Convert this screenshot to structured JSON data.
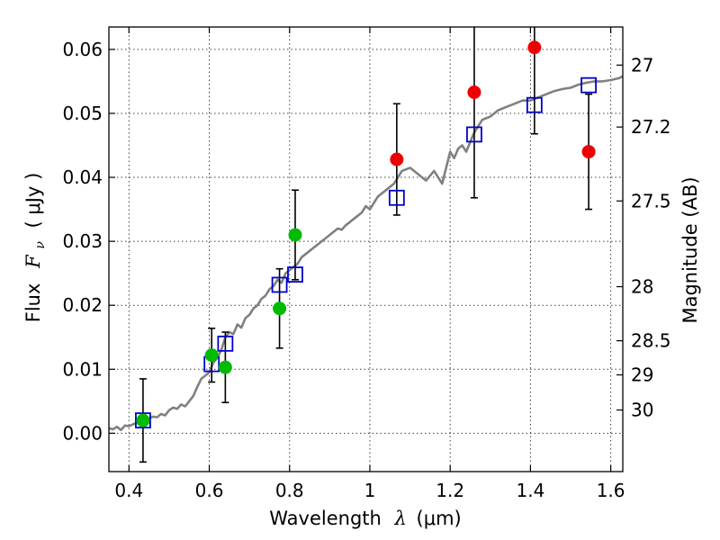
{
  "chart_data": {
    "type": "scatter",
    "title": "",
    "xlabel_prefix": "Wavelength",
    "xlabel_symbol": "λ",
    "xlabel_unit": "(μm)",
    "ylabel_prefix": "Flux",
    "ylabel_symbol": "F",
    "ylabel_subscript": "ν",
    "ylabel_unit": "( μJy )",
    "y2label": "Magnitude (AB)",
    "xlim": [
      0.35,
      1.63
    ],
    "ylim": [
      -0.006,
      0.0635
    ],
    "grid": true,
    "x_ticks": [
      {
        "value": 0.4,
        "label": "0.4"
      },
      {
        "value": 0.6,
        "label": "0.6"
      },
      {
        "value": 0.8,
        "label": "0.8"
      },
      {
        "value": 1.0,
        "label": "1"
      },
      {
        "value": 1.2,
        "label": "1.2"
      },
      {
        "value": 1.4,
        "label": "1.4"
      },
      {
        "value": 1.6,
        "label": "1.6"
      }
    ],
    "y_ticks": [
      {
        "value": 0.0,
        "label": "0.00"
      },
      {
        "value": 0.01,
        "label": "0.01"
      },
      {
        "value": 0.02,
        "label": "0.02"
      },
      {
        "value": 0.03,
        "label": "0.03"
      },
      {
        "value": 0.04,
        "label": "0.04"
      },
      {
        "value": 0.05,
        "label": "0.05"
      },
      {
        "value": 0.06,
        "label": "0.06"
      }
    ],
    "y2_ticks": [
      {
        "magnitude": 27,
        "label": "27"
      },
      {
        "magnitude": 27.2,
        "label": "27.2"
      },
      {
        "magnitude": 27.5,
        "label": "27.5"
      },
      {
        "magnitude": 28,
        "label": "28"
      },
      {
        "magnitude": 28.5,
        "label": "28.5"
      },
      {
        "magnitude": 29,
        "label": "29"
      },
      {
        "magnitude": 30,
        "label": "30"
      }
    ],
    "colors": {
      "model": "#808080",
      "model_photometry": "#0000cc",
      "optical": "#00bb00",
      "infrared": "#ee0000",
      "errorbar": "#000000"
    },
    "model_spectrum": {
      "x": [
        0.35,
        0.36,
        0.37,
        0.38,
        0.39,
        0.4,
        0.41,
        0.42,
        0.43,
        0.44,
        0.45,
        0.46,
        0.47,
        0.48,
        0.49,
        0.5,
        0.51,
        0.52,
        0.53,
        0.54,
        0.55,
        0.56,
        0.57,
        0.58,
        0.59,
        0.6,
        0.61,
        0.62,
        0.63,
        0.64,
        0.65,
        0.66,
        0.67,
        0.68,
        0.69,
        0.7,
        0.71,
        0.72,
        0.73,
        0.74,
        0.75,
        0.76,
        0.77,
        0.78,
        0.79,
        0.8,
        0.81,
        0.82,
        0.83,
        0.84,
        0.85,
        0.86,
        0.87,
        0.88,
        0.89,
        0.9,
        0.91,
        0.92,
        0.93,
        0.94,
        0.95,
        0.96,
        0.97,
        0.98,
        0.99,
        1.0,
        1.02,
        1.04,
        1.06,
        1.08,
        1.1,
        1.12,
        1.14,
        1.16,
        1.18,
        1.2,
        1.21,
        1.22,
        1.23,
        1.24,
        1.26,
        1.28,
        1.3,
        1.32,
        1.34,
        1.36,
        1.38,
        1.4,
        1.42,
        1.44,
        1.46,
        1.48,
        1.5,
        1.52,
        1.54,
        1.56,
        1.58,
        1.6,
        1.62,
        1.63
      ],
      "y": [
        0.0008,
        0.0006,
        0.001,
        0.0005,
        0.0012,
        0.0011,
        0.0014,
        0.0016,
        0.0018,
        0.002,
        0.0023,
        0.0026,
        0.0025,
        0.003,
        0.0028,
        0.0036,
        0.004,
        0.0038,
        0.0045,
        0.0042,
        0.005,
        0.0058,
        0.0072,
        0.0085,
        0.009,
        0.0095,
        0.011,
        0.0118,
        0.013,
        0.015,
        0.0158,
        0.0155,
        0.017,
        0.0165,
        0.018,
        0.0185,
        0.0195,
        0.02,
        0.021,
        0.0215,
        0.0225,
        0.023,
        0.024,
        0.0235,
        0.025,
        0.0255,
        0.026,
        0.0265,
        0.0275,
        0.028,
        0.0285,
        0.029,
        0.0295,
        0.03,
        0.0305,
        0.031,
        0.0315,
        0.032,
        0.0318,
        0.0325,
        0.033,
        0.0335,
        0.034,
        0.0345,
        0.0355,
        0.035,
        0.037,
        0.038,
        0.039,
        0.041,
        0.0415,
        0.0405,
        0.0395,
        0.041,
        0.039,
        0.044,
        0.043,
        0.0445,
        0.045,
        0.044,
        0.047,
        0.049,
        0.0495,
        0.0505,
        0.051,
        0.0515,
        0.052,
        0.052,
        0.0525,
        0.053,
        0.0535,
        0.0538,
        0.054,
        0.0545,
        0.0548,
        0.055,
        0.055,
        0.0552,
        0.0555,
        0.0558
      ]
    },
    "series": [
      {
        "marker": "square",
        "color": "#0000cc",
        "points": [
          {
            "x": 0.435,
            "y": 0.002
          },
          {
            "x": 0.606,
            "y": 0.0108
          },
          {
            "x": 0.64,
            "y": 0.014
          },
          {
            "x": 0.775,
            "y": 0.0232
          },
          {
            "x": 0.814,
            "y": 0.0248
          },
          {
            "x": 1.067,
            "y": 0.0368
          },
          {
            "x": 1.26,
            "y": 0.0467
          },
          {
            "x": 1.41,
            "y": 0.0513
          },
          {
            "x": 1.545,
            "y": 0.0544
          }
        ]
      },
      {
        "marker": "circle",
        "color": "#00bb00",
        "points": [
          {
            "x": 0.435,
            "y": 0.002,
            "yerr": 0.0065
          },
          {
            "x": 0.606,
            "y": 0.0122,
            "yerr": 0.0042
          },
          {
            "x": 0.64,
            "y": 0.0103,
            "yerr": 0.0055
          },
          {
            "x": 0.775,
            "y": 0.0195,
            "yerr": 0.0062
          },
          {
            "x": 0.814,
            "y": 0.031,
            "yerr": 0.007
          }
        ]
      },
      {
        "marker": "circle",
        "color": "#ee0000",
        "points": [
          {
            "x": 1.067,
            "y": 0.0428,
            "yerr": 0.0087
          },
          {
            "x": 1.26,
            "y": 0.0533,
            "yerr": 0.0165
          },
          {
            "x": 1.41,
            "y": 0.0603,
            "yerr": 0.0135
          },
          {
            "x": 1.545,
            "y": 0.044,
            "yerr": 0.009
          }
        ]
      }
    ]
  }
}
